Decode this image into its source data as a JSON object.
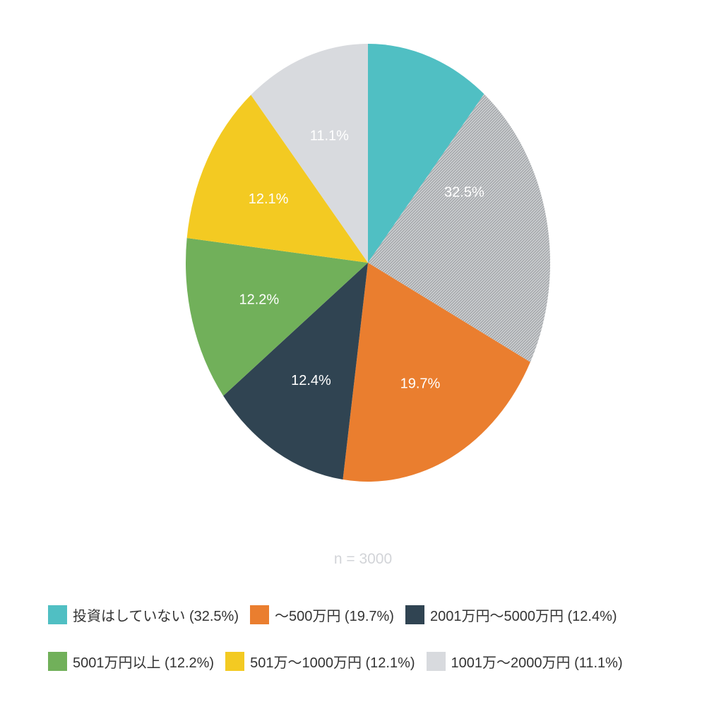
{
  "chart_data": {
    "type": "pie",
    "sample_size_label": "n = 3000",
    "slices": [
      {
        "label": "投資はしていない",
        "value": 32.5,
        "display": "32.5%",
        "legend": "投資はしていない (32.5%)",
        "color": "#50bfc3",
        "pattern": "hatched-gray"
      },
      {
        "label": "〜500万円",
        "value": 19.7,
        "display": "19.7%",
        "legend": "〜500万円 (19.7%)",
        "color": "#ea7e2f"
      },
      {
        "label": "2001万円〜5000万円",
        "value": 12.4,
        "display": "12.4%",
        "legend": "2001万円〜5000万円 (12.4%)",
        "color": "#304452"
      },
      {
        "label": "5001万円以上",
        "value": 12.2,
        "display": "12.2%",
        "legend": "5001万円以上 (12.2%)",
        "color": "#71b05a"
      },
      {
        "label": "501万〜1000万円",
        "value": 12.1,
        "display": "12.1%",
        "legend": "501万〜1000万円 (12.1%)",
        "color": "#f3ca22"
      },
      {
        "label": "1001万〜2000万円",
        "value": 11.1,
        "display": "11.1%",
        "legend": "1001万〜2000万円 (11.1%)",
        "color": "#d8dade"
      }
    ],
    "legend_position": "bottom"
  }
}
